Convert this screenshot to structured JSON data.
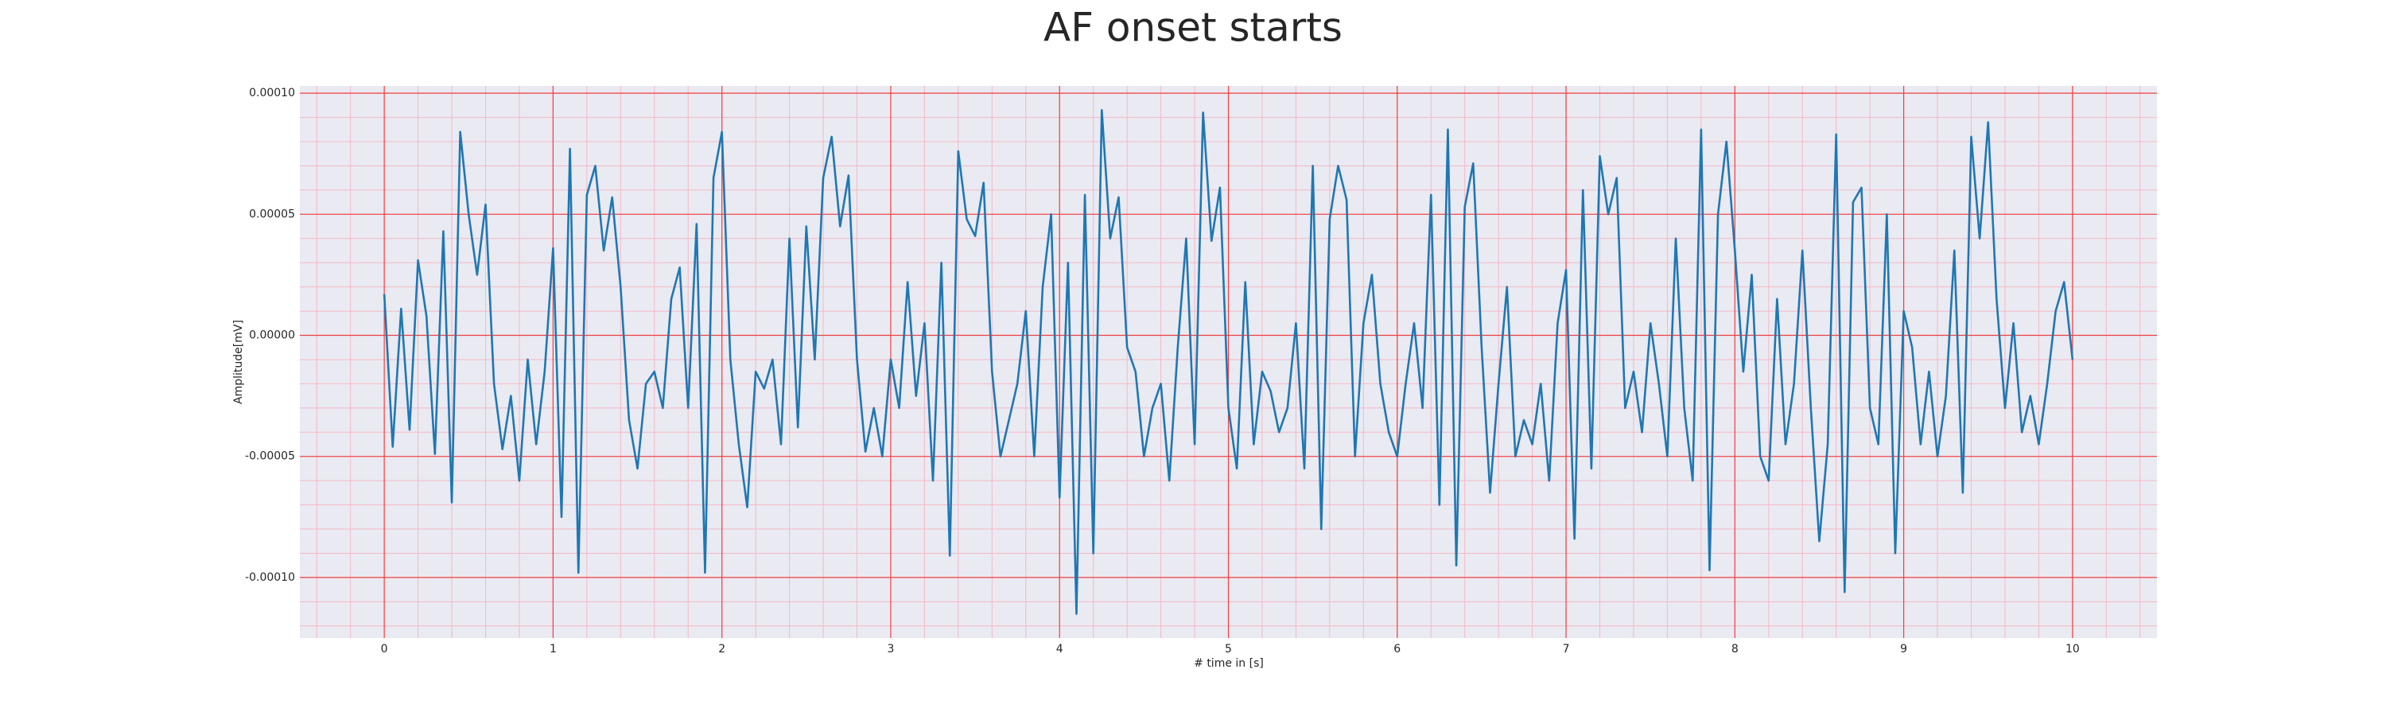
{
  "chart_data": {
    "type": "line",
    "title": "AF onset starts",
    "xlabel": "# time in [s]",
    "ylabel": "Amplitude[mV]",
    "color": "#1f77b4",
    "grid": true,
    "grid_color": "#f04040",
    "minor_grid": true,
    "minor_grid_color": "#f4b8c4",
    "background": "#eaeaf2",
    "xlim": [
      -0.5,
      10.5
    ],
    "ylim": [
      -0.000125,
      0.000103
    ],
    "xticks": [
      0,
      1,
      2,
      3,
      4,
      5,
      6,
      7,
      8,
      9,
      10
    ],
    "yticks": [
      {
        "value": -0.0001,
        "label": "-0.00010"
      },
      {
        "value": -5e-05,
        "label": "-0.00005"
      },
      {
        "value": 0,
        "label": "0.00000"
      },
      {
        "value": 5e-05,
        "label": "0.00005"
      },
      {
        "value": 0.0001,
        "label": "0.00010"
      }
    ],
    "x": [
      0,
      0.05,
      0.1,
      0.15,
      0.2,
      0.25,
      0.3,
      0.35,
      0.4,
      0.45,
      0.5,
      0.55,
      0.6,
      0.65,
      0.7,
      0.75,
      0.8,
      0.85,
      0.9,
      0.95,
      1,
      1.05,
      1.1,
      1.15,
      1.2,
      1.25,
      1.3,
      1.35,
      1.4,
      1.45,
      1.5,
      1.55,
      1.6,
      1.65,
      1.7,
      1.75,
      1.8,
      1.85,
      1.9,
      1.95,
      2,
      2.05,
      2.1,
      2.15,
      2.2,
      2.25,
      2.3,
      2.35,
      2.4,
      2.45,
      2.5,
      2.55,
      2.6,
      2.65,
      2.7,
      2.75,
      2.8,
      2.85,
      2.9,
      2.95,
      3,
      3.05,
      3.1,
      3.15,
      3.2,
      3.25,
      3.3,
      3.35,
      3.4,
      3.45,
      3.5,
      3.55,
      3.6,
      3.65,
      3.7,
      3.75,
      3.8,
      3.85,
      3.9,
      3.95,
      4,
      4.05,
      4.1,
      4.15,
      4.2,
      4.25,
      4.3,
      4.35,
      4.4,
      4.45,
      4.5,
      4.55,
      4.6,
      4.65,
      4.7,
      4.75,
      4.8,
      4.85,
      4.9,
      4.95,
      5,
      5.05,
      5.1,
      5.15,
      5.2,
      5.25,
      5.3,
      5.35,
      5.4,
      5.45,
      5.5,
      5.55,
      5.6,
      5.65,
      5.7,
      5.75,
      5.8,
      5.85,
      5.9,
      5.95,
      6,
      6.05,
      6.1,
      6.15,
      6.2,
      6.25,
      6.3,
      6.35,
      6.4,
      6.45,
      6.5,
      6.55,
      6.6,
      6.65,
      6.7,
      6.75,
      6.8,
      6.85,
      6.9,
      6.95,
      7,
      7.05,
      7.1,
      7.15,
      7.2,
      7.25,
      7.3,
      7.35,
      7.4,
      7.45,
      7.5,
      7.55,
      7.6,
      7.65,
      7.7,
      7.75,
      7.8,
      7.85,
      7.9,
      7.95,
      8,
      8.05,
      8.1,
      8.15,
      8.2,
      8.25,
      8.3,
      8.35,
      8.4,
      8.45,
      8.5,
      8.55,
      8.6,
      8.65,
      8.7,
      8.75,
      8.8,
      8.85,
      8.9,
      8.95,
      9,
      9.05,
      9.1,
      9.15,
      9.2,
      9.25,
      9.3,
      9.35,
      9.4,
      9.45,
      9.5,
      9.55,
      9.6,
      9.65,
      9.7,
      9.75,
      9.8,
      9.85,
      9.9,
      9.95,
      10
    ],
    "values": [
      1.7e-05,
      -4.6e-05,
      1.1e-05,
      -3.9e-05,
      3.1e-05,
      8e-06,
      -4.9e-05,
      4.3e-05,
      -6.9e-05,
      8.4e-05,
      5e-05,
      2.5e-05,
      5.4e-05,
      -2e-05,
      -4.7e-05,
      -2.5e-05,
      -6e-05,
      -1e-05,
      -4.5e-05,
      -1.5e-05,
      3.6e-05,
      -7.5e-05,
      7.7e-05,
      -9.8e-05,
      5.8e-05,
      7e-05,
      3.5e-05,
      5.7e-05,
      2e-05,
      -3.5e-05,
      -5.5e-05,
      -2e-05,
      -1.5e-05,
      -3e-05,
      1.5e-05,
      2.8e-05,
      -3e-05,
      4.6e-05,
      -9.8e-05,
      6.5e-05,
      8.4e-05,
      -1e-05,
      -4.5e-05,
      -7.1e-05,
      -1.5e-05,
      -2.2e-05,
      -1e-05,
      -4.5e-05,
      4e-05,
      -3.8e-05,
      4.5e-05,
      -1e-05,
      6.5e-05,
      8.2e-05,
      4.5e-05,
      6.6e-05,
      -1e-05,
      -4.8e-05,
      -3e-05,
      -5e-05,
      -1e-05,
      -3e-05,
      2.2e-05,
      -2.5e-05,
      5e-06,
      -6e-05,
      3e-05,
      -9.1e-05,
      7.6e-05,
      4.8e-05,
      4.1e-05,
      6.3e-05,
      -1.5e-05,
      -5e-05,
      -3.5e-05,
      -2e-05,
      1e-05,
      -5e-05,
      2e-05,
      5e-05,
      -6.7e-05,
      3e-05,
      -0.000115,
      5.8e-05,
      -9e-05,
      9.3e-05,
      4e-05,
      5.7e-05,
      -5e-06,
      -1.5e-05,
      -5e-05,
      -3e-05,
      -2e-05,
      -6e-05,
      -5e-06,
      4e-05,
      -4.5e-05,
      9.2e-05,
      3.9e-05,
      6.1e-05,
      -3e-05,
      -5.5e-05,
      2.2e-05,
      -4.5e-05,
      -1.5e-05,
      -2.3e-05,
      -4e-05,
      -3e-05,
      5e-06,
      -5.5e-05,
      7e-05,
      -8e-05,
      4.8e-05,
      7e-05,
      5.6e-05,
      -5e-05,
      5e-06,
      2.5e-05,
      -2e-05,
      -4e-05,
      -5e-05,
      -2e-05,
      5e-06,
      -3e-05,
      5.8e-05,
      -7e-05,
      8.5e-05,
      -9.5e-05,
      5.3e-05,
      7.1e-05,
      -5e-06,
      -6.5e-05,
      -2e-05,
      2e-05,
      -5e-05,
      -3.5e-05,
      -4.5e-05,
      -2e-05,
      -6e-05,
      5e-06,
      2.7e-05,
      -8.4e-05,
      6e-05,
      -5.5e-05,
      7.4e-05,
      5e-05,
      6.5e-05,
      -3e-05,
      -1.5e-05,
      -4e-05,
      5e-06,
      -2e-05,
      -5e-05,
      4e-05,
      -3e-05,
      -6e-05,
      8.5e-05,
      -9.7e-05,
      5e-05,
      8e-05,
      3.5e-05,
      -1.5e-05,
      2.5e-05,
      -5e-05,
      -6e-05,
      1.5e-05,
      -4.5e-05,
      -2e-05,
      3.5e-05,
      -3e-05,
      -8.5e-05,
      -4.5e-05,
      8.3e-05,
      -0.000106,
      5.5e-05,
      6.1e-05,
      -3e-05,
      -4.5e-05,
      5e-05,
      -9e-05,
      1e-05,
      -5e-06,
      -4.5e-05,
      -1.5e-05,
      -5e-05,
      -2.5e-05,
      3.5e-05,
      -6.5e-05,
      8.2e-05,
      4e-05,
      8.8e-05,
      1.5e-05,
      -3e-05,
      5e-06,
      -4e-05,
      -2.5e-05,
      -4.5e-05,
      -2e-05,
      1e-05,
      2.2e-05,
      -1e-05
    ]
  }
}
